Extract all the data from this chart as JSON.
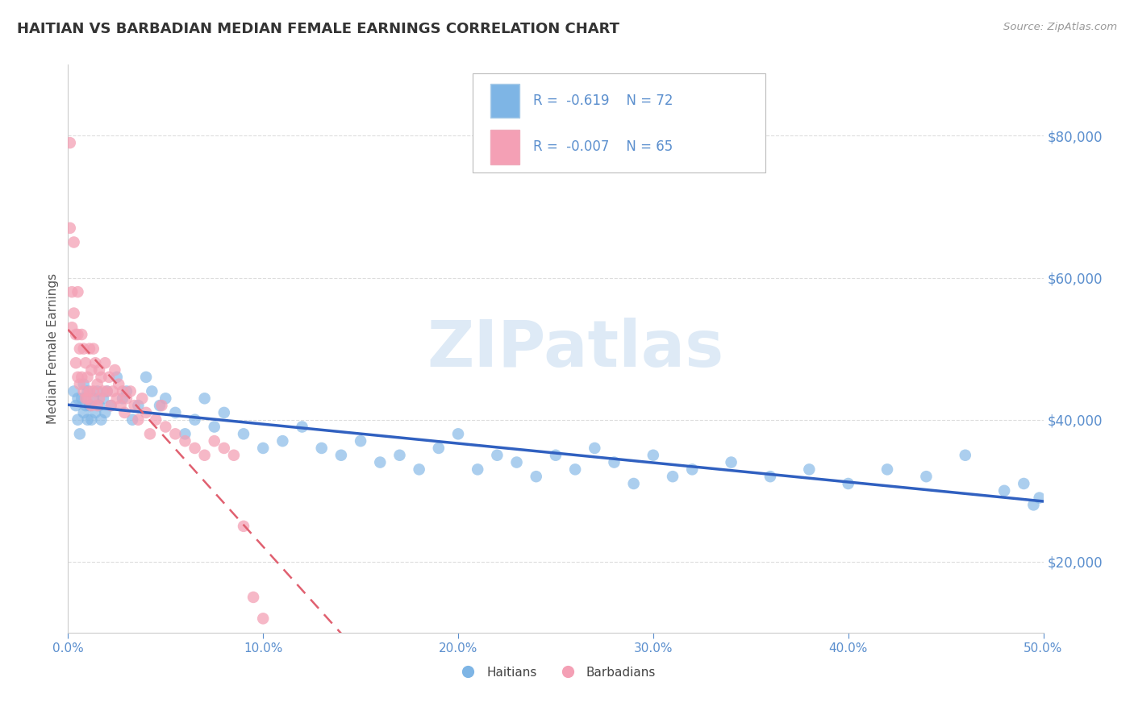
{
  "title": "HAITIAN VS BARBADIAN MEDIAN FEMALE EARNINGS CORRELATION CHART",
  "source": "Source: ZipAtlas.com",
  "ylabel": "Median Female Earnings",
  "xlim": [
    0.0,
    0.5
  ],
  "ylim": [
    10000,
    90000
  ],
  "yticks": [
    20000,
    40000,
    60000,
    80000
  ],
  "xticks": [
    0.0,
    0.1,
    0.2,
    0.3,
    0.4,
    0.5
  ],
  "xticklabels": [
    "0.0%",
    "10.0%",
    "20.0%",
    "30.0%",
    "40.0%",
    "50.0%"
  ],
  "yticklabels": [
    "$20,000",
    "$40,000",
    "$60,000",
    "$80,000"
  ],
  "legend_r_blue": "-0.619",
  "legend_n_blue": "72",
  "legend_r_pink": "-0.007",
  "legend_n_pink": "65",
  "blue_color": "#7EB5E5",
  "pink_color": "#F4A0B5",
  "trend_blue_color": "#3060C0",
  "trend_pink_color": "#E06070",
  "axis_tick_color": "#5B8FCE",
  "title_color": "#333333",
  "grid_color": "#DDDDDD",
  "watermark": "ZIPatlas",
  "haitians_x": [
    0.003,
    0.004,
    0.005,
    0.005,
    0.006,
    0.007,
    0.008,
    0.008,
    0.009,
    0.01,
    0.01,
    0.011,
    0.012,
    0.013,
    0.014,
    0.015,
    0.016,
    0.017,
    0.018,
    0.019,
    0.02,
    0.022,
    0.025,
    0.028,
    0.03,
    0.033,
    0.036,
    0.04,
    0.043,
    0.047,
    0.05,
    0.055,
    0.06,
    0.065,
    0.07,
    0.075,
    0.08,
    0.09,
    0.1,
    0.11,
    0.12,
    0.13,
    0.14,
    0.15,
    0.16,
    0.17,
    0.18,
    0.19,
    0.2,
    0.21,
    0.22,
    0.23,
    0.24,
    0.25,
    0.26,
    0.27,
    0.28,
    0.29,
    0.3,
    0.31,
    0.32,
    0.34,
    0.36,
    0.38,
    0.4,
    0.42,
    0.44,
    0.46,
    0.48,
    0.49,
    0.495,
    0.498
  ],
  "haitians_y": [
    44000,
    42000,
    43000,
    40000,
    38000,
    43000,
    41000,
    45000,
    42000,
    40000,
    44000,
    42000,
    40000,
    43000,
    41000,
    44000,
    42000,
    40000,
    43000,
    41000,
    44000,
    42000,
    46000,
    43000,
    44000,
    40000,
    42000,
    46000,
    44000,
    42000,
    43000,
    41000,
    38000,
    40000,
    43000,
    39000,
    41000,
    38000,
    36000,
    37000,
    39000,
    36000,
    35000,
    37000,
    34000,
    35000,
    33000,
    36000,
    38000,
    33000,
    35000,
    34000,
    32000,
    35000,
    33000,
    36000,
    34000,
    31000,
    35000,
    32000,
    33000,
    34000,
    32000,
    33000,
    31000,
    33000,
    32000,
    35000,
    30000,
    31000,
    28000,
    29000
  ],
  "barbadians_x": [
    0.001,
    0.001,
    0.002,
    0.002,
    0.003,
    0.003,
    0.004,
    0.004,
    0.005,
    0.005,
    0.005,
    0.006,
    0.006,
    0.007,
    0.007,
    0.008,
    0.008,
    0.009,
    0.009,
    0.01,
    0.01,
    0.011,
    0.011,
    0.012,
    0.012,
    0.013,
    0.013,
    0.014,
    0.015,
    0.015,
    0.016,
    0.016,
    0.017,
    0.018,
    0.019,
    0.02,
    0.021,
    0.022,
    0.023,
    0.024,
    0.025,
    0.026,
    0.027,
    0.028,
    0.029,
    0.03,
    0.032,
    0.034,
    0.036,
    0.038,
    0.04,
    0.042,
    0.045,
    0.048,
    0.05,
    0.055,
    0.06,
    0.065,
    0.07,
    0.075,
    0.08,
    0.085,
    0.09,
    0.095,
    0.1
  ],
  "barbadians_y": [
    79000,
    67000,
    58000,
    53000,
    65000,
    55000,
    52000,
    48000,
    58000,
    52000,
    46000,
    50000,
    45000,
    52000,
    46000,
    50000,
    44000,
    48000,
    43000,
    46000,
    43000,
    50000,
    44000,
    47000,
    42000,
    50000,
    44000,
    48000,
    45000,
    42000,
    47000,
    43000,
    46000,
    44000,
    48000,
    44000,
    46000,
    42000,
    44000,
    47000,
    43000,
    45000,
    42000,
    44000,
    41000,
    43000,
    44000,
    42000,
    40000,
    43000,
    41000,
    38000,
    40000,
    42000,
    39000,
    38000,
    37000,
    36000,
    35000,
    37000,
    36000,
    35000,
    25000,
    15000,
    12000
  ]
}
